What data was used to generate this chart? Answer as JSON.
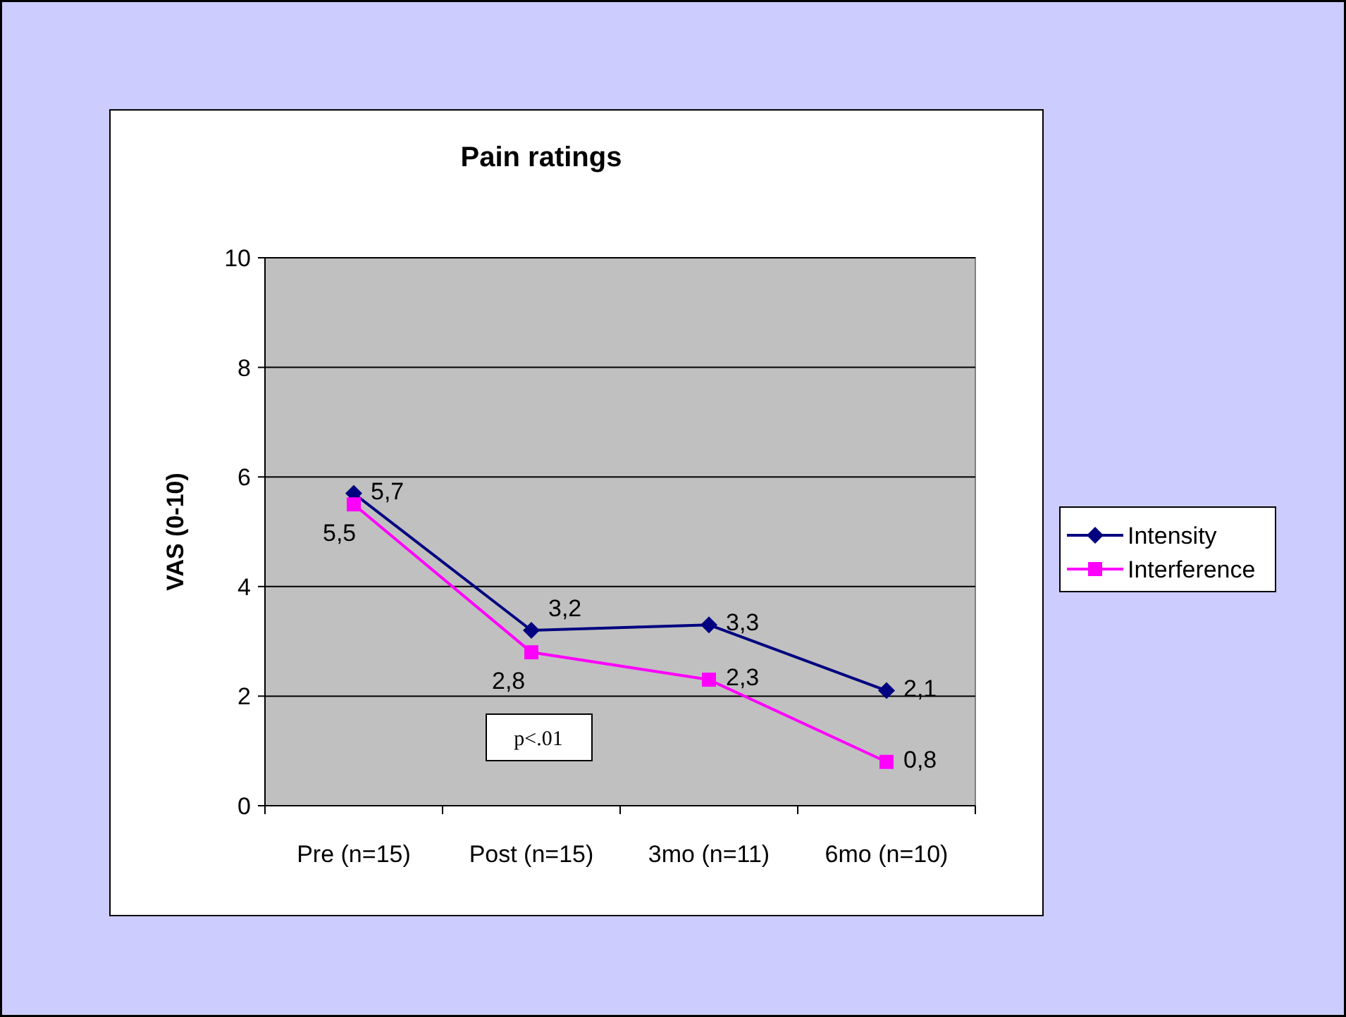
{
  "chart_data": {
    "type": "line",
    "title": "Pain ratings",
    "ylabel": "VAS (0-10)",
    "categories": [
      "Pre (n=15)",
      "Post (n=15)",
      "3mo (n=11)",
      "6mo (n=10)"
    ],
    "series": [
      {
        "name": "Intensity",
        "color": "#000080",
        "marker": "diamond",
        "values": [
          5.7,
          3.2,
          3.3,
          2.1
        ],
        "value_labels": [
          "5,7",
          "3,2",
          "3,3",
          "2,1"
        ]
      },
      {
        "name": "Interference",
        "color": "#ff00ff",
        "marker": "square",
        "values": [
          5.5,
          2.8,
          2.3,
          0.8
        ],
        "value_labels": [
          "5,5",
          "2,8",
          "2,3",
          "0,8"
        ]
      }
    ],
    "ylim": [
      0,
      10
    ],
    "yticks": [
      0,
      2,
      4,
      6,
      8,
      10
    ],
    "grid": "y",
    "legend": "right",
    "annotations": [
      "p<.01"
    ]
  }
}
